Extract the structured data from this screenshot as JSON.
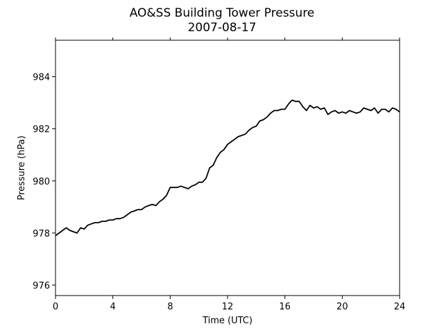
{
  "chart_data": {
    "type": "line",
    "title": "AO&SS Building Tower Pressure",
    "subtitle": "2007-08-17",
    "xlabel": "Time (UTC)",
    "ylabel": "Pressure (hPa)",
    "xlim": [
      0,
      24
    ],
    "ylim": [
      975.6,
      985.4
    ],
    "xticks": [
      0,
      4,
      8,
      12,
      16,
      20,
      24
    ],
    "yticks": [
      976,
      978,
      980,
      982,
      984
    ],
    "xtick_labels": [
      "0",
      "4",
      "8",
      "12",
      "16",
      "20",
      "24"
    ],
    "ytick_labels": [
      "976",
      "978",
      "980",
      "982",
      "984"
    ],
    "grid": false,
    "line_color": "#000000",
    "series": [
      {
        "x": [
          0,
          0.25,
          0.5,
          0.75,
          1.0,
          1.25,
          1.5,
          1.75,
          2.0,
          2.25,
          2.5,
          2.75,
          3.0,
          3.25,
          3.5,
          3.75,
          4.0,
          4.25,
          4.5,
          4.75,
          5.0,
          5.25,
          5.5,
          5.75,
          6.0,
          6.25,
          6.5,
          6.75,
          7.0,
          7.25,
          7.5,
          7.75,
          8.0,
          8.25,
          8.5,
          8.75,
          9.0,
          9.25,
          9.5,
          9.75,
          10.0,
          10.25,
          10.5,
          10.75,
          11.0,
          11.25,
          11.5,
          11.75,
          12.0,
          12.25,
          12.5,
          12.75,
          13.0,
          13.25,
          13.5,
          13.75,
          14.0,
          14.25,
          14.5,
          14.75,
          15.0,
          15.25,
          15.5,
          15.75,
          16.0,
          16.25,
          16.5,
          16.75,
          17.0,
          17.25,
          17.5,
          17.75,
          18.0,
          18.25,
          18.5,
          18.75,
          19.0,
          19.25,
          19.5,
          19.75,
          20.0,
          20.25,
          20.5,
          20.75,
          21.0,
          21.25,
          21.5,
          21.75,
          22.0,
          22.25,
          22.5,
          22.75,
          23.0,
          23.25,
          23.5,
          23.75,
          24.0
        ],
        "values": [
          977.9,
          978.0,
          978.1,
          978.2,
          978.1,
          978.05,
          978.0,
          978.2,
          978.15,
          978.3,
          978.35,
          978.4,
          978.4,
          978.45,
          978.45,
          978.5,
          978.5,
          978.55,
          978.55,
          978.6,
          978.7,
          978.8,
          978.85,
          978.9,
          978.9,
          979.0,
          979.05,
          979.1,
          979.05,
          979.2,
          979.3,
          979.45,
          979.75,
          979.75,
          979.75,
          979.8,
          979.75,
          979.7,
          979.8,
          979.85,
          979.95,
          979.95,
          980.1,
          980.5,
          980.6,
          980.9,
          981.1,
          981.2,
          981.4,
          981.5,
          981.6,
          981.7,
          981.75,
          981.8,
          981.95,
          982.05,
          982.1,
          982.3,
          982.35,
          982.45,
          982.6,
          982.7,
          982.7,
          982.75,
          982.75,
          982.95,
          983.1,
          983.05,
          983.05,
          982.85,
          982.7,
          982.9,
          982.8,
          982.85,
          982.75,
          982.8,
          982.55,
          982.65,
          982.7,
          982.6,
          982.65,
          982.6,
          982.7,
          982.65,
          982.6,
          982.65,
          982.8,
          982.75,
          982.7,
          982.8,
          982.6,
          982.75,
          982.75,
          982.65,
          982.8,
          982.75,
          982.65
        ]
      }
    ]
  }
}
